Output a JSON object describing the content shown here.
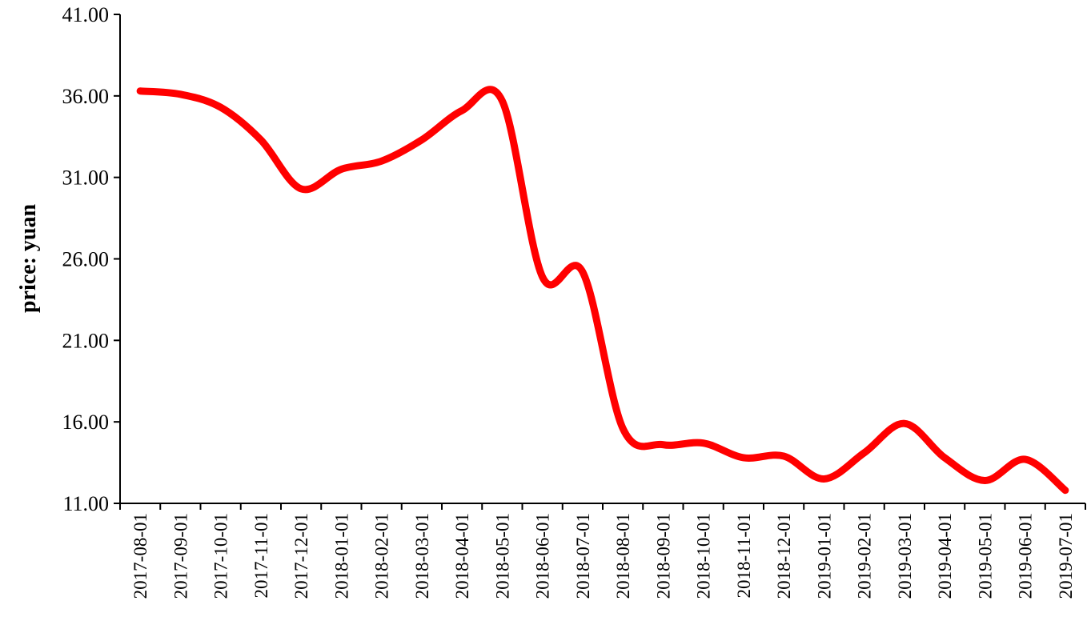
{
  "chart_data": {
    "type": "line",
    "y_label": "price: yuan",
    "categories": [
      "2017-08-01",
      "2017-09-01",
      "2017-10-01",
      "2017-11-01",
      "2017-12-01",
      "2018-01-01",
      "2018-02-01",
      "2018-03-01",
      "2018-04-01",
      "2018-05-01",
      "2018-06-01",
      "2018-07-01",
      "2018-08-01",
      "2018-09-01",
      "2018-10-01",
      "2018-11-01",
      "2018-12-01",
      "2019-01-01",
      "2019-02-01",
      "2019-03-01",
      "2019-04-01",
      "2019-05-01",
      "2019-06-01",
      "2019-07-01"
    ],
    "series": [
      {
        "name": "price",
        "color": "#ff0000",
        "values": [
          36.3,
          36.1,
          35.3,
          33.3,
          30.3,
          31.5,
          32.0,
          33.3,
          35.1,
          35.7,
          24.9,
          25.2,
          15.6,
          14.6,
          14.7,
          13.8,
          13.9,
          12.5,
          14.1,
          15.9,
          13.8,
          12.4,
          13.7,
          11.8
        ]
      }
    ],
    "ylim": [
      11,
      41
    ],
    "yticks": [
      {
        "value": 11,
        "label": "11.00"
      },
      {
        "value": 16,
        "label": "16.00"
      },
      {
        "value": 21,
        "label": "21.00"
      },
      {
        "value": 26,
        "label": "26.00"
      },
      {
        "value": 31,
        "label": "31.00"
      },
      {
        "value": 36,
        "label": "36.00"
      },
      {
        "value": 41,
        "label": "41.00"
      }
    ],
    "grid": false,
    "smooth": true
  }
}
